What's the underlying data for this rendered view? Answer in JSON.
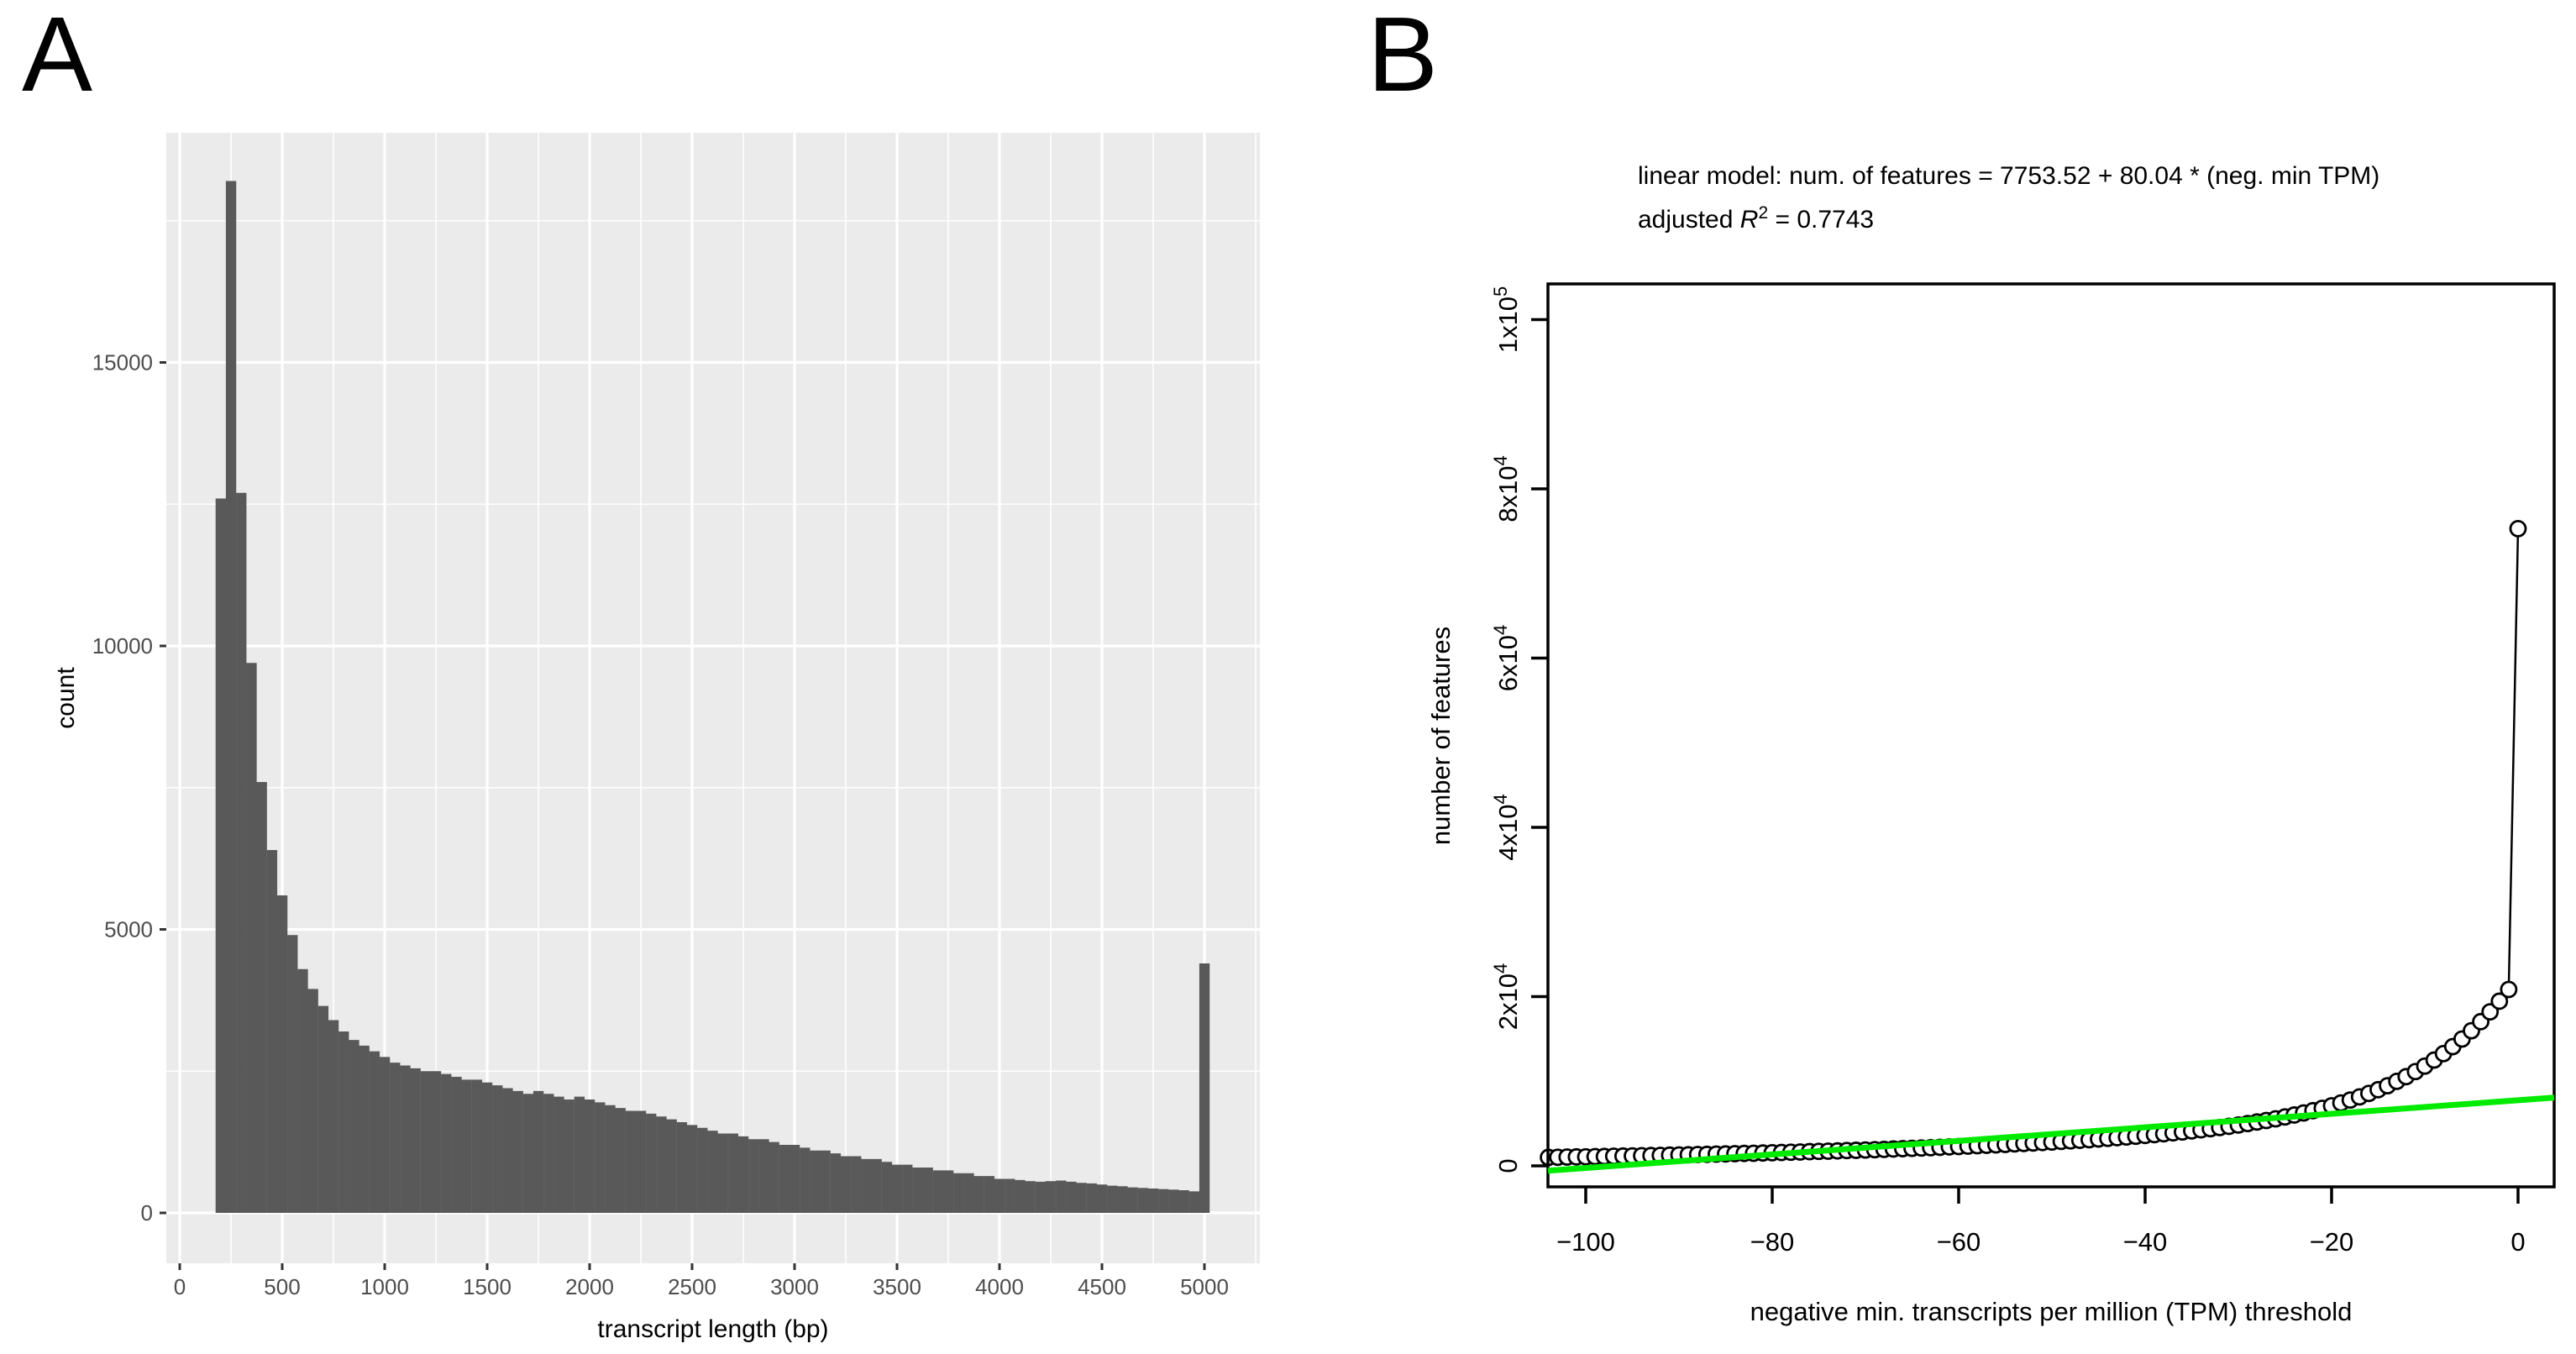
{
  "panel_a": {
    "label": "A"
  },
  "panel_b": {
    "label": "B",
    "model_line1": "linear model: num. of features = 7753.52 + 80.04 * (neg. min TPM)",
    "model_line2_prefix": "adjusted ",
    "model_line2_r": "R",
    "model_line2_sup": "2",
    "model_line2_suffix": " = 0.7743"
  },
  "chart_data": [
    {
      "type": "bar",
      "panel": "A",
      "title": "",
      "xlabel": "transcript length (bp)",
      "ylabel": "count",
      "bin_width": 50,
      "xlim": [
        -65,
        5270
      ],
      "ylim": [
        -890,
        19050
      ],
      "grid": true,
      "x_ticks": [
        {
          "v": 0,
          "label": "0"
        },
        {
          "v": 500,
          "label": "500"
        },
        {
          "v": 1000,
          "label": "1000"
        },
        {
          "v": 1500,
          "label": "1500"
        },
        {
          "v": 2000,
          "label": "2000"
        },
        {
          "v": 2500,
          "label": "2500"
        },
        {
          "v": 3000,
          "label": "3000"
        },
        {
          "v": 3500,
          "label": "3500"
        },
        {
          "v": 4000,
          "label": "4000"
        },
        {
          "v": 4500,
          "label": "4500"
        },
        {
          "v": 5000,
          "label": "5000"
        }
      ],
      "y_ticks": [
        {
          "v": 0,
          "label": "0"
        },
        {
          "v": 5000,
          "label": "5000"
        },
        {
          "v": 10000,
          "label": "10000"
        },
        {
          "v": 15000,
          "label": "15000"
        }
      ],
      "minor_x": [
        250,
        750,
        1250,
        1750,
        2250,
        2750,
        3250,
        3750,
        4250,
        4750,
        5250
      ],
      "minor_y": [
        2500,
        7500,
        12500,
        17500
      ],
      "colors": {
        "panel_bg": "#EBEBEB",
        "grid": "#FFFFFF",
        "bar": "#595959",
        "tick": "#333333",
        "tick_text": "#4D4D4D"
      },
      "bin_centers": [
        200,
        250,
        300,
        350,
        400,
        450,
        500,
        550,
        600,
        650,
        700,
        750,
        800,
        850,
        900,
        950,
        1000,
        1050,
        1100,
        1150,
        1200,
        1250,
        1300,
        1350,
        1400,
        1450,
        1500,
        1550,
        1600,
        1650,
        1700,
        1750,
        1800,
        1850,
        1900,
        1950,
        2000,
        2050,
        2100,
        2150,
        2200,
        2250,
        2300,
        2350,
        2400,
        2450,
        2500,
        2550,
        2600,
        2650,
        2700,
        2750,
        2800,
        2850,
        2900,
        2950,
        3000,
        3050,
        3100,
        3150,
        3200,
        3250,
        3300,
        3350,
        3400,
        3450,
        3500,
        3550,
        3600,
        3650,
        3700,
        3750,
        3800,
        3850,
        3900,
        3950,
        4000,
        4050,
        4100,
        4150,
        4200,
        4250,
        4300,
        4350,
        4400,
        4450,
        4500,
        4550,
        4600,
        4650,
        4700,
        4750,
        4800,
        4850,
        4900,
        4950,
        5000
      ],
      "counts": [
        12600,
        18200,
        12700,
        9700,
        7600,
        6400,
        5600,
        4900,
        4300,
        3950,
        3650,
        3400,
        3200,
        3050,
        2950,
        2850,
        2750,
        2650,
        2600,
        2550,
        2500,
        2500,
        2450,
        2400,
        2350,
        2350,
        2300,
        2250,
        2200,
        2150,
        2100,
        2150,
        2100,
        2050,
        2000,
        2050,
        2000,
        1950,
        1900,
        1850,
        1800,
        1800,
        1750,
        1700,
        1650,
        1600,
        1550,
        1500,
        1450,
        1400,
        1400,
        1350,
        1300,
        1300,
        1250,
        1200,
        1200,
        1150,
        1100,
        1100,
        1050,
        1000,
        1000,
        950,
        950,
        900,
        850,
        850,
        800,
        800,
        750,
        750,
        700,
        700,
        650,
        650,
        600,
        600,
        580,
        560,
        550,
        560,
        570,
        550,
        530,
        520,
        500,
        480,
        470,
        450,
        440,
        430,
        420,
        410,
        400,
        380,
        4400
      ]
    },
    {
      "type": "scatter",
      "panel": "B",
      "title": "linear model: num. of features = 7753.52 + 80.04 * (neg. min TPM); adjusted R2 = 0.7743",
      "xlabel": "negative min. transcripts per million (TPM) threshold",
      "ylabel": "number of features",
      "xlim": [
        -103.9,
        3.9
      ],
      "ylim": [
        -2480,
        104260
      ],
      "grid": false,
      "x_ticks": [
        {
          "v": -100,
          "label": "−100"
        },
        {
          "v": -80,
          "label": "−80"
        },
        {
          "v": -60,
          "label": "−60"
        },
        {
          "v": -40,
          "label": "−40"
        },
        {
          "v": -20,
          "label": "−20"
        },
        {
          "v": 0,
          "label": "0"
        }
      ],
      "y_ticks": [
        {
          "v": 0,
          "base": "0",
          "sup": ""
        },
        {
          "v": 20000,
          "base": "2x10",
          "sup": "4"
        },
        {
          "v": 40000,
          "base": "4x10",
          "sup": "4"
        },
        {
          "v": 60000,
          "base": "6x10",
          "sup": "4"
        },
        {
          "v": 80000,
          "base": "8x10",
          "sup": "4"
        },
        {
          "v": 100000,
          "base": "1x10",
          "sup": "5"
        }
      ],
      "fit": {
        "intercept": 7753.52,
        "slope": 80.04,
        "adjusted_r2": 0.7743,
        "color": "#00EB00"
      },
      "colors": {
        "box": "#000000",
        "point": "#000000",
        "line": "#000000"
      },
      "x": [
        -104,
        -103,
        -102,
        -101,
        -100,
        -99,
        -98,
        -97,
        -96,
        -95,
        -94,
        -93,
        -92,
        -91,
        -90,
        -89,
        -88,
        -87,
        -86,
        -85,
        -84,
        -83,
        -82,
        -81,
        -80,
        -79,
        -78,
        -77,
        -76,
        -75,
        -74,
        -73,
        -72,
        -71,
        -70,
        -69,
        -68,
        -67,
        -66,
        -65,
        -64,
        -63,
        -62,
        -61,
        -60,
        -59,
        -58,
        -57,
        -56,
        -55,
        -54,
        -53,
        -52,
        -51,
        -50,
        -49,
        -48,
        -47,
        -46,
        -45,
        -44,
        -43,
        -42,
        -41,
        -40,
        -39,
        -38,
        -37,
        -36,
        -35,
        -34,
        -33,
        -32,
        -31,
        -30,
        -29,
        -28,
        -27,
        -26,
        -25,
        -24,
        -23,
        -22,
        -21,
        -20,
        -19,
        -18,
        -17,
        -16,
        -15,
        -14,
        -13,
        -12,
        -11,
        -10,
        -9,
        -8,
        -7,
        -6,
        -5,
        -4,
        -3,
        -2,
        -1,
        0
      ],
      "y": [
        1000,
        1020,
        1040,
        1060,
        1070,
        1090,
        1110,
        1140,
        1160,
        1180,
        1200,
        1220,
        1240,
        1270,
        1290,
        1310,
        1340,
        1360,
        1390,
        1410,
        1440,
        1470,
        1490,
        1520,
        1550,
        1580,
        1610,
        1640,
        1680,
        1710,
        1740,
        1770,
        1810,
        1840,
        1870,
        1910,
        1950,
        1990,
        2030,
        2070,
        2110,
        2150,
        2190,
        2240,
        2280,
        2330,
        2380,
        2430,
        2480,
        2530,
        2590,
        2640,
        2700,
        2760,
        2820,
        2890,
        2950,
        3020,
        3090,
        3170,
        3250,
        3330,
        3410,
        3500,
        3590,
        3690,
        3790,
        3900,
        4010,
        4130,
        4260,
        4390,
        4530,
        4670,
        4830,
        5000,
        5180,
        5360,
        5560,
        5780,
        6010,
        6250,
        6520,
        6800,
        7100,
        7430,
        7780,
        8150,
        8560,
        9000,
        9470,
        9990,
        10540,
        11140,
        11790,
        12500,
        13260,
        14090,
        14990,
        15970,
        17040,
        18200,
        19460,
        20840,
        75300
      ]
    }
  ]
}
